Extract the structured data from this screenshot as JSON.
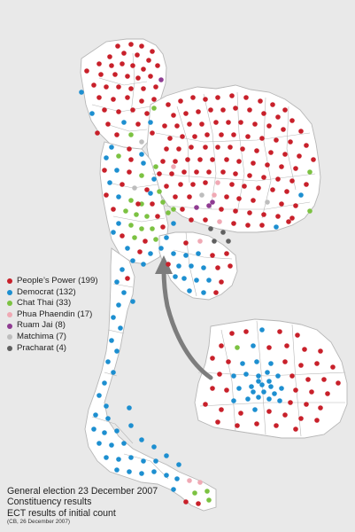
{
  "map": {
    "colors": {
      "land": "#ffffff",
      "border": "#b7b7b7",
      "background": "#e9e9e9",
      "arrow": "#7d7d7d"
    }
  },
  "legend": {
    "items": [
      {
        "label": "People’s Power (199)",
        "color": "#c8202a"
      },
      {
        "label": "Democrat (132)",
        "color": "#1d8fd0"
      },
      {
        "label": "Chat Thai (33)",
        "color": "#7cc242"
      },
      {
        "label": "Phua Phaendin (17)",
        "color": "#f0a9b4"
      },
      {
        "label": "Ruam Jai (8)",
        "color": "#8f3c92"
      },
      {
        "label": "Matchima (7)",
        "color": "#bdbdbd"
      },
      {
        "label": "Pracharat (4)",
        "color": "#606060"
      }
    ]
  },
  "caption": {
    "line1": "General election 23 December 2007",
    "line2": "Constituency results",
    "line3": "ECT results of initial count",
    "credit": "(CB, 26 December 2007)"
  }
}
